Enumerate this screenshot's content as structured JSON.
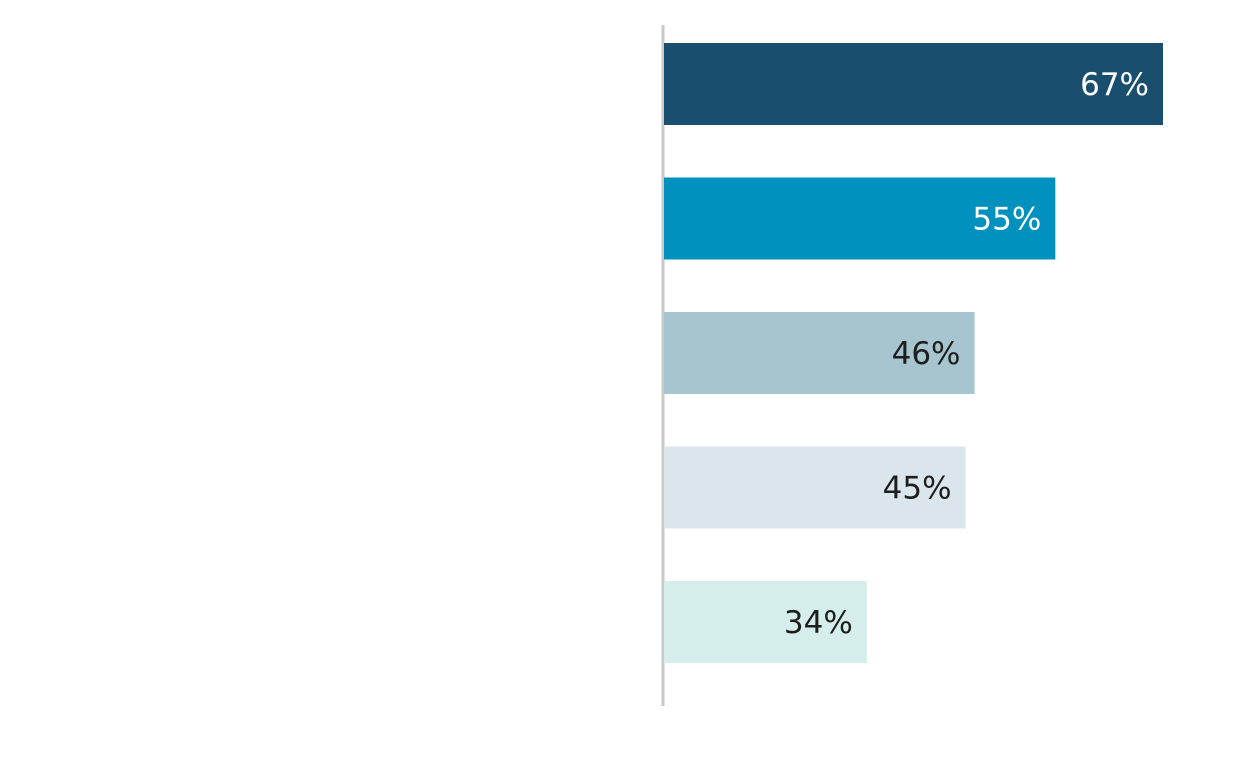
{
  "chart_data": {
    "type": "hbar",
    "values": [
      67,
      55,
      46,
      45,
      34
    ],
    "value_labels": [
      "67%",
      "55%",
      "46%",
      "45%",
      "34%"
    ],
    "colors": [
      "#1a4e6e",
      "#0091be",
      "#a6c5cf",
      "#dae6ec",
      "#d5eeec"
    ],
    "xlim": [
      11.4,
      67
    ]
  }
}
